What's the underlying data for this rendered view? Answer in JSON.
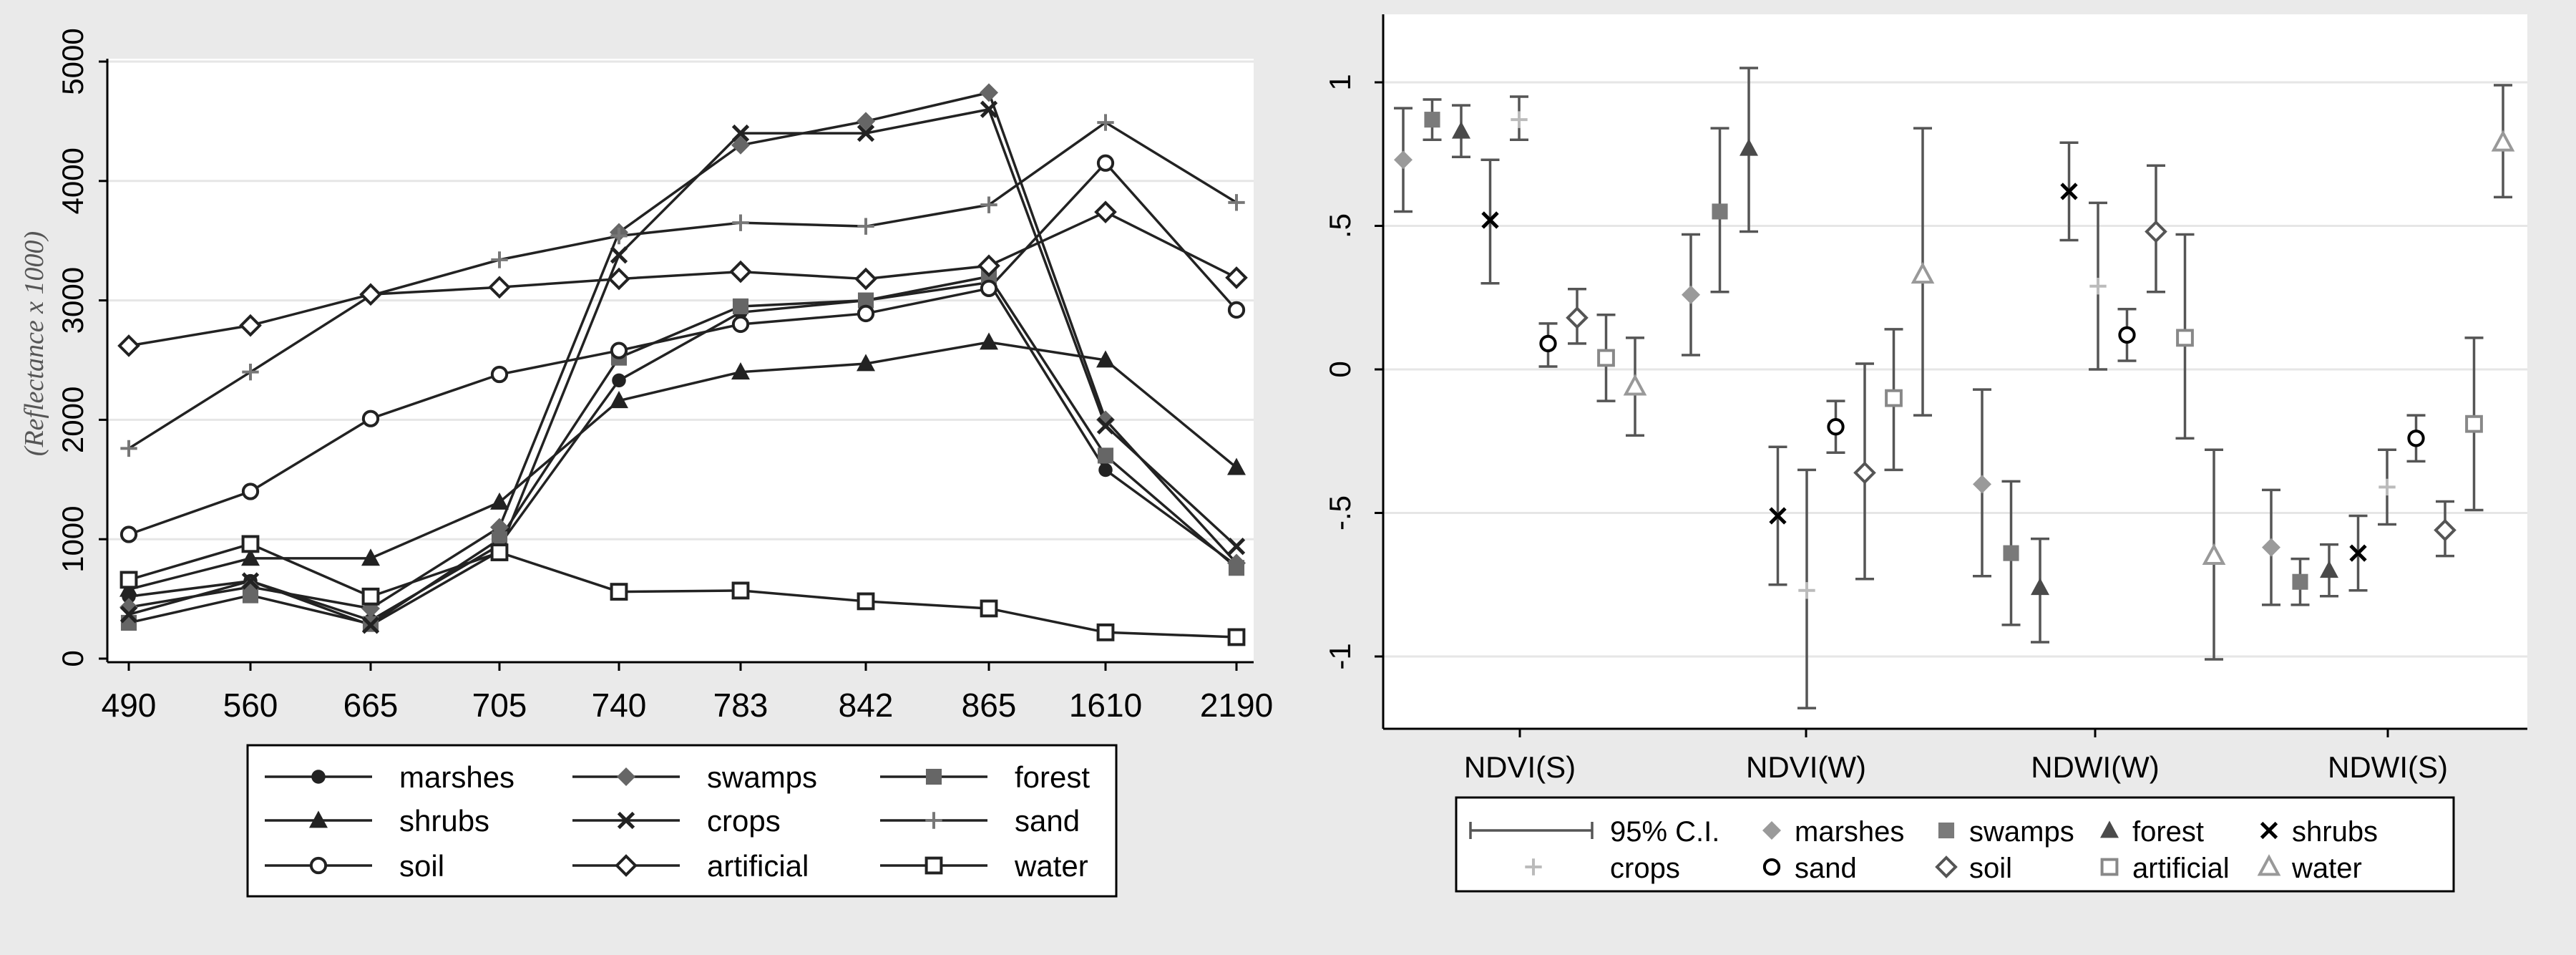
{
  "chart_data": [
    {
      "type": "line",
      "title": "",
      "xlabel": "",
      "ylabel": "(Reflectance x 1000)",
      "categories": [
        "490",
        "560",
        "665",
        "705",
        "740",
        "783",
        "842",
        "865",
        "1610",
        "2190"
      ],
      "ylim": [
        0,
        5000
      ],
      "yticks": [
        "0",
        "1000",
        "2000",
        "3000",
        "4000",
        "5000"
      ],
      "yticks_values": [
        0,
        1000,
        2000,
        3000,
        4000,
        5000
      ],
      "grid": true,
      "legend_position": "bottom",
      "series": [
        {
          "name": "marshes",
          "marker": "dot",
          "values": [
            520,
            650,
            320,
            950,
            2330,
            2900,
            3000,
            3150,
            1580,
            780
          ]
        },
        {
          "name": "swamps",
          "marker": "diamond-filled",
          "values": [
            430,
            600,
            420,
            1100,
            3570,
            4300,
            4500,
            4740,
            2000,
            800
          ]
        },
        {
          "name": "forest",
          "marker": "square-filled",
          "values": [
            300,
            530,
            290,
            1000,
            2520,
            2950,
            3000,
            3200,
            1700,
            760
          ]
        },
        {
          "name": "shrubs",
          "marker": "triangle-filled",
          "values": [
            580,
            840,
            840,
            1310,
            2160,
            2400,
            2470,
            2650,
            2500,
            1600
          ]
        },
        {
          "name": "crops",
          "marker": "x",
          "values": [
            370,
            650,
            280,
            900,
            3380,
            4400,
            4400,
            4600,
            1950,
            940
          ]
        },
        {
          "name": "sand",
          "marker": "plus",
          "values": [
            1760,
            2400,
            3040,
            3340,
            3540,
            3650,
            3620,
            3800,
            4490,
            3820
          ]
        },
        {
          "name": "soil",
          "marker": "circle-open",
          "values": [
            1040,
            1400,
            2010,
            2380,
            2580,
            2800,
            2890,
            3100,
            4150,
            2920
          ]
        },
        {
          "name": "artificial",
          "marker": "diamond-open",
          "values": [
            2620,
            2790,
            3050,
            3110,
            3180,
            3240,
            3180,
            3290,
            3740,
            3190
          ]
        },
        {
          "name": "water",
          "marker": "square-open",
          "values": [
            660,
            960,
            520,
            890,
            560,
            570,
            480,
            420,
            220,
            180
          ]
        }
      ]
    },
    {
      "type": "scatter",
      "title": "",
      "xlabel": "",
      "ylabel": "",
      "categories": [
        "NDVI(S)",
        "NDVI(W)",
        "NDWI(W)",
        "NDWI(S)"
      ],
      "ylim": [
        -1.25,
        1.1
      ],
      "yticks": [
        "1",
        ".5",
        "0",
        "-.5",
        "-1"
      ],
      "yticks_values": [
        1,
        0.5,
        0,
        -0.5,
        -1
      ],
      "grid": true,
      "legend_position": "bottom",
      "ci_label": "95% C.I.",
      "series": [
        {
          "name": "marshes",
          "marker": "diamond-filled",
          "color": "#9a9a9a",
          "points": [
            {
              "y": 0.73,
              "lo": 0.55,
              "hi": 0.91
            },
            {
              "y": 0.26,
              "lo": 0.05,
              "hi": 0.47
            },
            {
              "y": -0.4,
              "lo": -0.72,
              "hi": -0.07
            },
            {
              "y": -0.62,
              "lo": -0.82,
              "hi": -0.42
            }
          ]
        },
        {
          "name": "swamps",
          "marker": "square-filled",
          "color": "#7a7a7a",
          "points": [
            {
              "y": 0.87,
              "lo": 0.8,
              "hi": 0.94
            },
            {
              "y": 0.55,
              "lo": 0.27,
              "hi": 0.84
            },
            {
              "y": -0.64,
              "lo": -0.89,
              "hi": -0.39
            },
            {
              "y": -0.74,
              "lo": -0.82,
              "hi": -0.66
            }
          ]
        },
        {
          "name": "forest",
          "marker": "triangle-filled",
          "color": "#4a4a4a",
          "points": [
            {
              "y": 0.83,
              "lo": 0.74,
              "hi": 0.92
            },
            {
              "y": 0.77,
              "lo": 0.48,
              "hi": 1.05
            },
            {
              "y": -0.76,
              "lo": -0.95,
              "hi": -0.59
            },
            {
              "y": -0.7,
              "lo": -0.79,
              "hi": -0.61
            }
          ]
        },
        {
          "name": "shrubs",
          "marker": "x",
          "color": "#000000",
          "points": [
            {
              "y": 0.52,
              "lo": 0.3,
              "hi": 0.73
            },
            {
              "y": -0.51,
              "lo": -0.75,
              "hi": -0.27
            },
            {
              "y": 0.62,
              "lo": 0.45,
              "hi": 0.79
            },
            {
              "y": -0.64,
              "lo": -0.77,
              "hi": -0.51
            }
          ]
        },
        {
          "name": "crops",
          "marker": "plus",
          "color": "#bbbbbb",
          "points": [
            {
              "y": 0.87,
              "lo": 0.8,
              "hi": 0.95
            },
            {
              "y": -0.77,
              "lo": -1.18,
              "hi": -0.35
            },
            {
              "y": 0.29,
              "lo": 0.0,
              "hi": 0.58
            },
            {
              "y": -0.41,
              "lo": -0.54,
              "hi": -0.28
            }
          ]
        },
        {
          "name": "sand",
          "marker": "circle-open",
          "color": "#000000",
          "points": [
            {
              "y": 0.09,
              "lo": 0.01,
              "hi": 0.16
            },
            {
              "y": -0.2,
              "lo": -0.29,
              "hi": -0.11
            },
            {
              "y": 0.12,
              "lo": 0.03,
              "hi": 0.21
            },
            {
              "y": -0.24,
              "lo": -0.32,
              "hi": -0.16
            }
          ]
        },
        {
          "name": "soil",
          "marker": "diamond-open",
          "color": "#555555",
          "points": [
            {
              "y": 0.18,
              "lo": 0.09,
              "hi": 0.28
            },
            {
              "y": -0.36,
              "lo": -0.73,
              "hi": 0.02
            },
            {
              "y": 0.48,
              "lo": 0.27,
              "hi": 0.71
            },
            {
              "y": -0.56,
              "lo": -0.65,
              "hi": -0.46
            }
          ]
        },
        {
          "name": "artificial",
          "marker": "square-open",
          "color": "#888888",
          "points": [
            {
              "y": 0.04,
              "lo": -0.11,
              "hi": 0.19
            },
            {
              "y": -0.1,
              "lo": -0.35,
              "hi": 0.14
            },
            {
              "y": 0.11,
              "lo": -0.24,
              "hi": 0.47
            },
            {
              "y": -0.19,
              "lo": -0.49,
              "hi": 0.11
            }
          ]
        },
        {
          "name": "water",
          "marker": "triangle-open",
          "color": "#999999",
          "points": [
            {
              "y": -0.06,
              "lo": -0.23,
              "hi": 0.11
            },
            {
              "y": 0.33,
              "lo": -0.16,
              "hi": 0.84
            },
            {
              "y": -0.65,
              "lo": -1.01,
              "hi": -0.28
            },
            {
              "y": 0.79,
              "lo": 0.6,
              "hi": 0.99
            }
          ]
        }
      ]
    }
  ]
}
